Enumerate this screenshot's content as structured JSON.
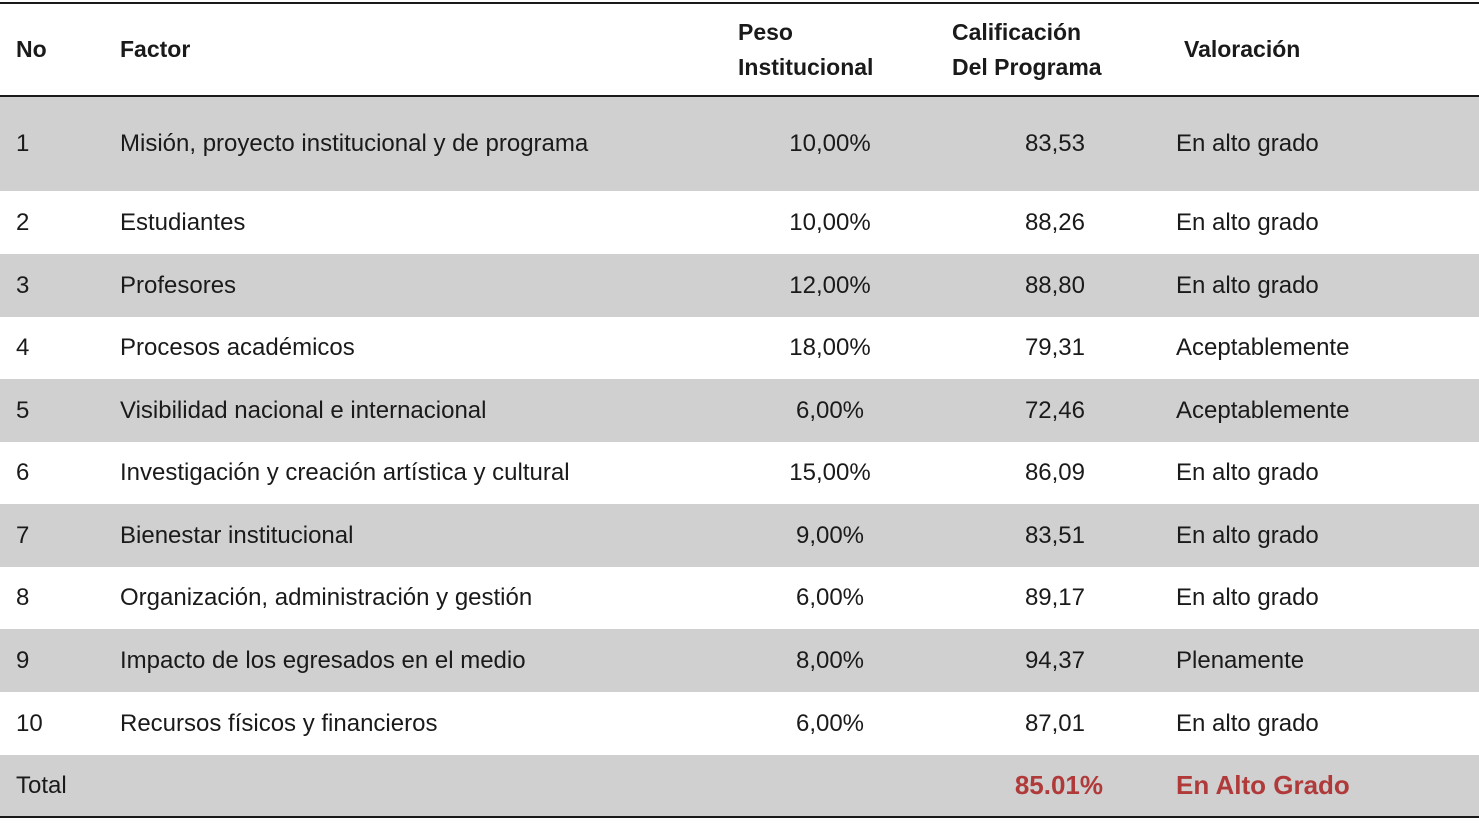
{
  "header": {
    "no": "No",
    "factor": "Factor",
    "peso_line1": "Peso",
    "peso_line2": "Institucional",
    "calif_line1": "Calificación",
    "calif_line2": "Del Programa",
    "valoracion": "Valoración"
  },
  "rows": [
    {
      "no": "1",
      "factor": "Misión, proyecto institucional y de programa",
      "peso": "10,00%",
      "calificacion": "83,53",
      "valoracion": "En alto grado"
    },
    {
      "no": "2",
      "factor": "Estudiantes",
      "peso": "10,00%",
      "calificacion": "88,26",
      "valoracion": "En alto grado"
    },
    {
      "no": "3",
      "factor": "Profesores",
      "peso": "12,00%",
      "calificacion": "88,80",
      "valoracion": "En alto grado"
    },
    {
      "no": "4",
      "factor": "Procesos académicos",
      "peso": "18,00%",
      "calificacion": "79,31",
      "valoracion": "Aceptablemente"
    },
    {
      "no": "5",
      "factor": "Visibilidad nacional e internacional",
      "peso": "6,00%",
      "calificacion": "72,46",
      "valoracion": "Aceptablemente"
    },
    {
      "no": "6",
      "factor": "Investigación y creación artística y cultural",
      "peso": "15,00%",
      "calificacion": "86,09",
      "valoracion": "En alto grado"
    },
    {
      "no": "7",
      "factor": "Bienestar institucional",
      "peso": "9,00%",
      "calificacion": "83,51",
      "valoracion": "En alto grado"
    },
    {
      "no": "8",
      "factor": "Organización, administración y gestión",
      "peso": "6,00%",
      "calificacion": "89,17",
      "valoracion": "En alto grado"
    },
    {
      "no": "9",
      "factor": "Impacto de los egresados en el medio",
      "peso": "8,00%",
      "calificacion": "94,37",
      "valoracion": "Plenamente"
    },
    {
      "no": "10",
      "factor": "Recursos físicos y financieros",
      "peso": "6,00%",
      "calificacion": "87,01",
      "valoracion": "En alto grado"
    }
  ],
  "total": {
    "label": "Total",
    "calificacion": "85.01%",
    "valoracion": "En Alto Grado"
  },
  "colors": {
    "shade": "#d0d0d0",
    "accent": "#b03a3a",
    "rule": "#1a1a1a"
  }
}
